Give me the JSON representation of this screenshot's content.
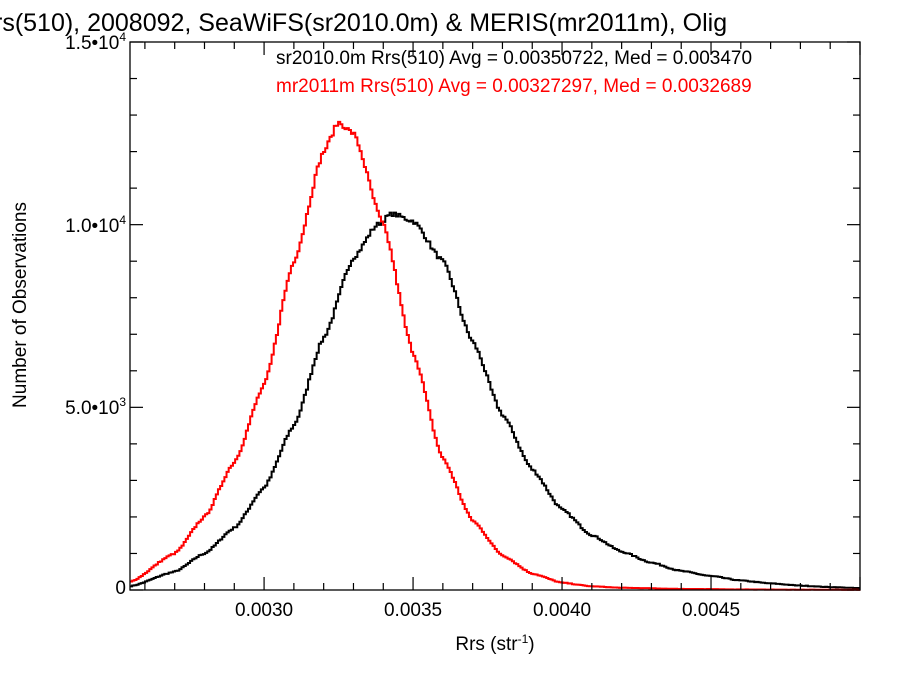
{
  "chart_data": {
    "type": "histogram",
    "title": "rs(510), 2008092, SeaWiFS(sr2010.0m) & MERIS(mr2011m), Olig",
    "xlabel": "Rrs (str",
    "xlabel_exponent": "-1",
    "xlabel_suffix": ")",
    "ylabel": "Number of Observations",
    "xlim": [
      0.00255,
      0.005
    ],
    "ylim": [
      0,
      15000
    ],
    "x_ticks": [
      {
        "value": 0.003,
        "label": "0.0030"
      },
      {
        "value": 0.0035,
        "label": "0.0035"
      },
      {
        "value": 0.004,
        "label": "0.0040"
      },
      {
        "value": 0.0045,
        "label": "0.0045"
      }
    ],
    "y_ticks": [
      {
        "value": 0,
        "mantissa": "0",
        "exponent": ""
      },
      {
        "value": 5000,
        "mantissa": "5.0•10",
        "exponent": "3"
      },
      {
        "value": 10000,
        "mantissa": "1.0•10",
        "exponent": "4"
      },
      {
        "value": 15000,
        "mantissa": "1.5•10",
        "exponent": "4"
      }
    ],
    "annotations": [
      {
        "text": "sr2010.0m Rrs(510) Avg = 0.00350722, Med = 0.003470",
        "color": "#000000"
      },
      {
        "text": "mr2011m Rrs(510) Avg = 0.00327297, Med = 0.0032689",
        "color": "#ff0000"
      }
    ],
    "series": [
      {
        "name": "sr2010.0m",
        "color": "#000000",
        "points": [
          [
            0.00255,
            100
          ],
          [
            0.0027,
            500
          ],
          [
            0.0028,
            1000
          ],
          [
            0.0029,
            1700
          ],
          [
            0.003,
            2800
          ],
          [
            0.0031,
            4500
          ],
          [
            0.0032,
            6900
          ],
          [
            0.0033,
            9100
          ],
          [
            0.00338,
            10000
          ],
          [
            0.00343,
            10300
          ],
          [
            0.0035,
            10100
          ],
          [
            0.0036,
            9000
          ],
          [
            0.0037,
            6800
          ],
          [
            0.0038,
            4800
          ],
          [
            0.0039,
            3300
          ],
          [
            0.004,
            2200
          ],
          [
            0.0041,
            1500
          ],
          [
            0.0042,
            1050
          ],
          [
            0.0043,
            750
          ],
          [
            0.0044,
            520
          ],
          [
            0.0045,
            380
          ],
          [
            0.0046,
            260
          ],
          [
            0.0047,
            180
          ],
          [
            0.0048,
            120
          ],
          [
            0.0049,
            80
          ],
          [
            0.005,
            50
          ]
        ]
      },
      {
        "name": "mr2011m",
        "color": "#ff0000",
        "points": [
          [
            0.00255,
            220
          ],
          [
            0.0027,
            1000
          ],
          [
            0.0028,
            2000
          ],
          [
            0.0029,
            3500
          ],
          [
            0.003,
            5600
          ],
          [
            0.0031,
            9000
          ],
          [
            0.0032,
            12000
          ],
          [
            0.00325,
            12800
          ],
          [
            0.0033,
            12500
          ],
          [
            0.0034,
            10000
          ],
          [
            0.0035,
            6500
          ],
          [
            0.0036,
            3600
          ],
          [
            0.0037,
            1900
          ],
          [
            0.0038,
            950
          ],
          [
            0.0039,
            450
          ],
          [
            0.004,
            200
          ],
          [
            0.0041,
            100
          ],
          [
            0.0042,
            60
          ],
          [
            0.0044,
            30
          ],
          [
            0.0046,
            15
          ],
          [
            0.0048,
            8
          ],
          [
            0.005,
            5
          ]
        ]
      }
    ],
    "jitter_seed": 7,
    "grid": false
  }
}
